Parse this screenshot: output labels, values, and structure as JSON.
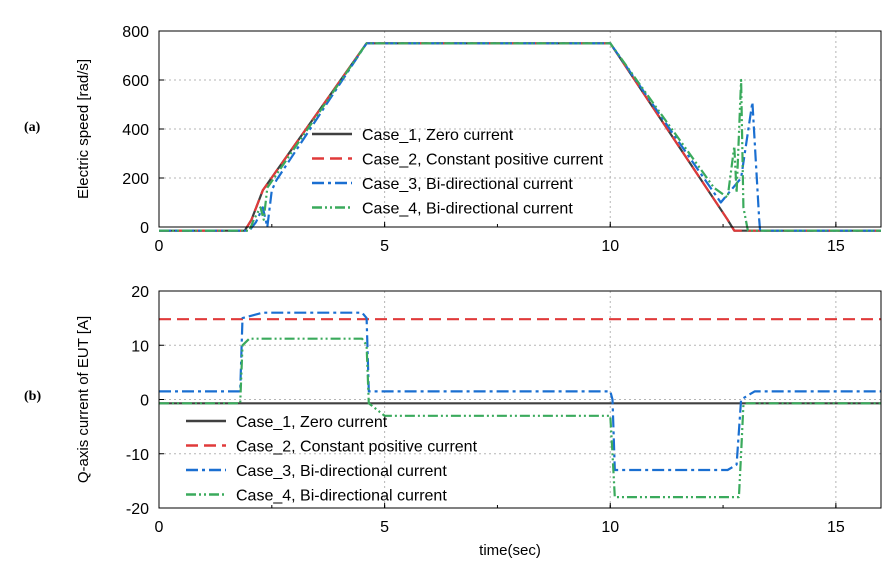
{
  "figure": {
    "panel_a_label": "(a)",
    "panel_b_label": "(b)"
  },
  "chart_data": [
    {
      "type": "line",
      "panel": "(a)",
      "ylabel": "Electric speed [rad/s]",
      "xlabel": "",
      "xlim": [
        0,
        16
      ],
      "ylim": [
        0,
        800
      ],
      "xticks": [
        0,
        5,
        10,
        15
      ],
      "yticks": [
        0,
        200,
        400,
        600,
        800
      ],
      "grid": true,
      "legend_position": "center-left",
      "series": [
        {
          "name": "Case_1, Zero current",
          "color": "#404040",
          "dash": "solid",
          "x": [
            0,
            1.9,
            2.05,
            2.3,
            4.6,
            10.0,
            12.6,
            12.75,
            16
          ],
          "y": [
            -15,
            -15,
            30,
            150,
            750,
            750,
            30,
            -15,
            -15
          ]
        },
        {
          "name": "Case_2, Constant positive current",
          "color": "#e03a3a",
          "dash": "dash",
          "x": [
            0,
            1.9,
            2.05,
            2.3,
            4.6,
            10.0,
            12.6,
            12.75,
            16
          ],
          "y": [
            -15,
            -15,
            30,
            150,
            750,
            750,
            30,
            -15,
            -15
          ]
        },
        {
          "name": "Case_3, Bi-directional current",
          "color": "#1a6fd1",
          "dash": "dashdot",
          "x": [
            0,
            2.0,
            2.15,
            2.3,
            2.4,
            2.5,
            2.6,
            4.6,
            10.0,
            12.3,
            12.45,
            12.9,
            13.15,
            13.3,
            13.32,
            16
          ],
          "y": [
            -15,
            -15,
            20,
            80,
            0,
            150,
            190,
            750,
            750,
            140,
            100,
            200,
            510,
            30,
            -15,
            -15
          ]
        },
        {
          "name": "Case_4, Bi-directional current",
          "color": "#3aaa5c",
          "dash": "dashdotdot",
          "x": [
            0,
            2.0,
            2.1,
            2.25,
            2.32,
            2.4,
            4.6,
            10.0,
            12.3,
            12.6,
            12.75,
            12.8,
            12.9,
            12.95,
            13.05,
            16
          ],
          "y": [
            -15,
            -15,
            30,
            80,
            30,
            160,
            750,
            750,
            160,
            120,
            330,
            140,
            600,
            80,
            -15,
            -15
          ]
        }
      ]
    },
    {
      "type": "line",
      "panel": "(b)",
      "ylabel": "Q-axis current of EUT [A]",
      "xlabel": "time(sec)",
      "xlim": [
        0,
        16
      ],
      "ylim": [
        -20,
        20
      ],
      "xticks": [
        0,
        5,
        10,
        15
      ],
      "yticks": [
        -20,
        -10,
        0,
        10,
        20
      ],
      "grid": true,
      "legend_position": "bottom-left",
      "series": [
        {
          "name": "Case_1, Zero current",
          "color": "#404040",
          "dash": "solid",
          "x": [
            0,
            16
          ],
          "y": [
            -0.7,
            -0.7
          ]
        },
        {
          "name": "Case_2, Constant positive current",
          "color": "#e03a3a",
          "dash": "dash",
          "x": [
            0,
            16
          ],
          "y": [
            14.8,
            14.8
          ]
        },
        {
          "name": "Case_3, Bi-directional current",
          "color": "#1a6fd1",
          "dash": "dashdot",
          "x": [
            0,
            1.8,
            1.85,
            2.3,
            4.5,
            4.6,
            4.65,
            10.0,
            10.05,
            10.1,
            12.6,
            12.8,
            12.9,
            13.2,
            16
          ],
          "y": [
            1.5,
            1.5,
            15,
            16,
            16,
            15,
            1.5,
            1.5,
            0,
            -13,
            -13,
            -12,
            0,
            1.5,
            1.5
          ]
        },
        {
          "name": "Case_4, Bi-directional current",
          "color": "#3aaa5c",
          "dash": "dashdotdot",
          "x": [
            0,
            1.8,
            1.85,
            2.0,
            4.5,
            4.6,
            4.65,
            5.0,
            10.0,
            10.05,
            10.1,
            12.85,
            12.9,
            12.95,
            13.0,
            16
          ],
          "y": [
            -0.7,
            -0.7,
            10,
            11.2,
            11.2,
            10,
            -0.7,
            -3,
            -3,
            -10,
            -18,
            -18,
            -10,
            -1,
            -0.7,
            -0.7
          ]
        }
      ]
    }
  ]
}
